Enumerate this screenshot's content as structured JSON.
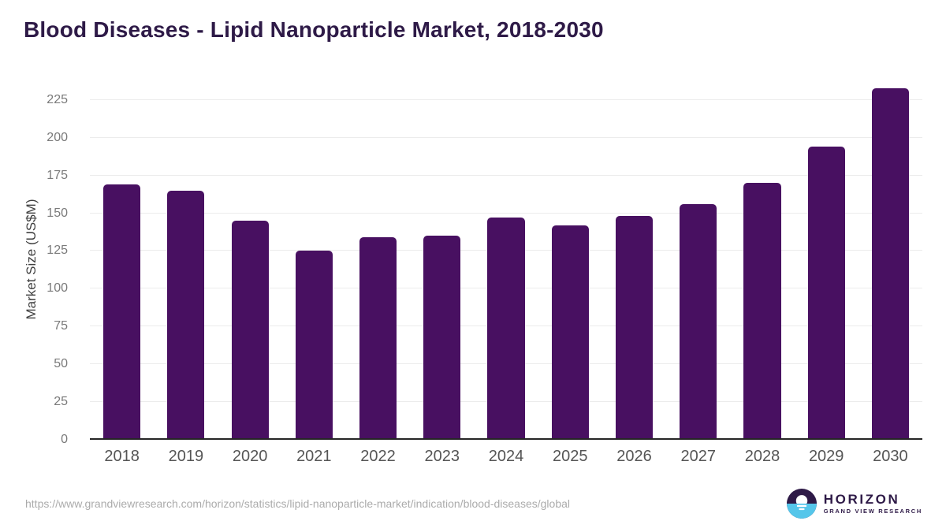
{
  "chart_data": {
    "type": "bar",
    "title": "Blood Diseases - Lipid Nanoparticle Market, 2018-2030",
    "categories": [
      "2018",
      "2019",
      "2020",
      "2021",
      "2022",
      "2023",
      "2024",
      "2025",
      "2026",
      "2027",
      "2028",
      "2029",
      "2030"
    ],
    "values": [
      169,
      165,
      145,
      125,
      134,
      135,
      147,
      142,
      148,
      156,
      170,
      194,
      233
    ],
    "xlabel": "",
    "ylabel": "Market Size (US$M)",
    "yticks": [
      0,
      25,
      50,
      75,
      100,
      125,
      150,
      175,
      200,
      225
    ],
    "ylim": [
      0,
      239
    ],
    "grid": "horizontal",
    "legend": "none",
    "bar_color": "#481061"
  },
  "colors": {
    "title_text": "#2e1a47",
    "bar": "#481061",
    "gridline": "#ececec",
    "axis_line": "#262626",
    "y_tick_text": "#7a7a7a",
    "x_tick_text": "#555555",
    "url_text": "#ababab",
    "logo_purple": "#2e1a47",
    "logo_blue": "#55c6ea"
  },
  "footer": {
    "source_url": "https://www.grandviewresearch.com/horizon/statistics/lipid-nanoparticle-market/indication/blood-diseases/global",
    "logo": {
      "brand": "HORIZON",
      "tagline": "GRAND VIEW RESEARCH"
    }
  }
}
